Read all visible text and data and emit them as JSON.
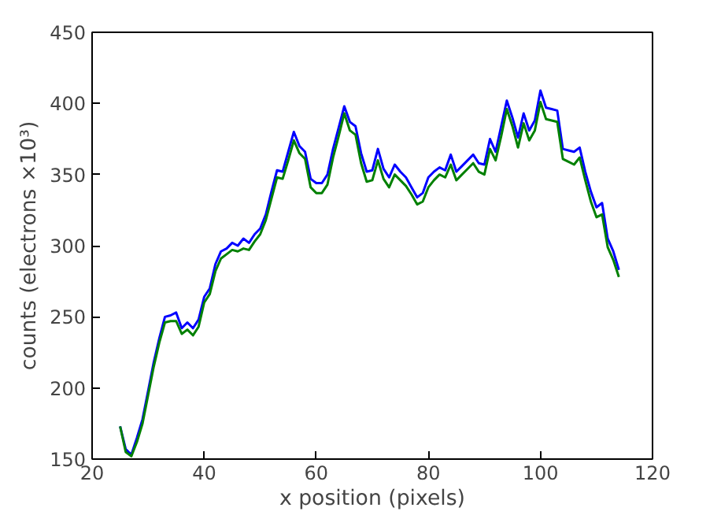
{
  "chart_data": {
    "type": "line",
    "xlabel": "x position (pixels)",
    "ylabel": "counts (electrons ×10³)",
    "xlim": [
      20,
      120
    ],
    "ylim": [
      150,
      450
    ],
    "xticks": [
      20,
      40,
      60,
      80,
      100,
      120
    ],
    "yticks": [
      150,
      200,
      250,
      300,
      350,
      400,
      450
    ],
    "grid": false,
    "marker": "none",
    "line_style": "solid",
    "x": [
      25,
      26,
      27,
      28,
      29,
      30,
      31,
      32,
      33,
      34,
      35,
      36,
      37,
      38,
      39,
      40,
      41,
      42,
      43,
      44,
      45,
      46,
      47,
      48,
      49,
      50,
      51,
      52,
      53,
      54,
      55,
      56,
      57,
      58,
      59,
      60,
      61,
      62,
      63,
      64,
      65,
      66,
      67,
      68,
      69,
      70,
      71,
      72,
      73,
      74,
      75,
      76,
      77,
      78,
      79,
      80,
      81,
      82,
      83,
      84,
      85,
      86,
      87,
      88,
      89,
      90,
      91,
      92,
      93,
      94,
      95,
      96,
      97,
      98,
      99,
      100,
      101,
      102,
      103,
      104,
      105,
      106,
      107,
      108,
      109,
      110,
      111,
      112,
      113,
      114
    ],
    "series": [
      {
        "color": "#0000ff",
        "values": [
          173,
          157,
          153,
          165,
          178,
          198,
          218,
          235,
          250,
          251,
          253,
          242,
          246,
          242,
          248,
          264,
          270,
          287,
          296,
          298,
          302,
          300,
          305,
          302,
          308,
          312,
          322,
          338,
          353,
          352,
          366,
          380,
          370,
          366,
          347,
          344,
          344,
          350,
          368,
          383,
          398,
          387,
          384,
          365,
          352,
          353,
          368,
          354,
          348,
          357,
          352,
          348,
          341,
          334,
          337,
          348,
          352,
          355,
          353,
          364,
          352,
          356,
          360,
          364,
          358,
          357,
          375,
          366,
          384,
          402,
          390,
          376,
          393,
          381,
          388,
          409,
          397,
          396,
          395,
          368,
          367,
          366,
          369,
          352,
          338,
          327,
          330,
          305,
          296,
          283
        ]
      },
      {
        "color": "#008000",
        "values": [
          173,
          155,
          152,
          162,
          175,
          195,
          215,
          232,
          246,
          247,
          247,
          238,
          241,
          237,
          243,
          260,
          266,
          282,
          291,
          294,
          297,
          296,
          298,
          297,
          303,
          308,
          318,
          333,
          348,
          347,
          360,
          374,
          365,
          361,
          341,
          337,
          337,
          343,
          362,
          377,
          393,
          381,
          378,
          358,
          345,
          346,
          360,
          347,
          341,
          350,
          346,
          342,
          336,
          329,
          331,
          341,
          346,
          350,
          348,
          357,
          346,
          350,
          354,
          358,
          352,
          350,
          368,
          360,
          377,
          396,
          384,
          369,
          386,
          374,
          381,
          401,
          389,
          388,
          387,
          361,
          359,
          357,
          362,
          346,
          331,
          320,
          322,
          299,
          290,
          278
        ]
      }
    ]
  }
}
